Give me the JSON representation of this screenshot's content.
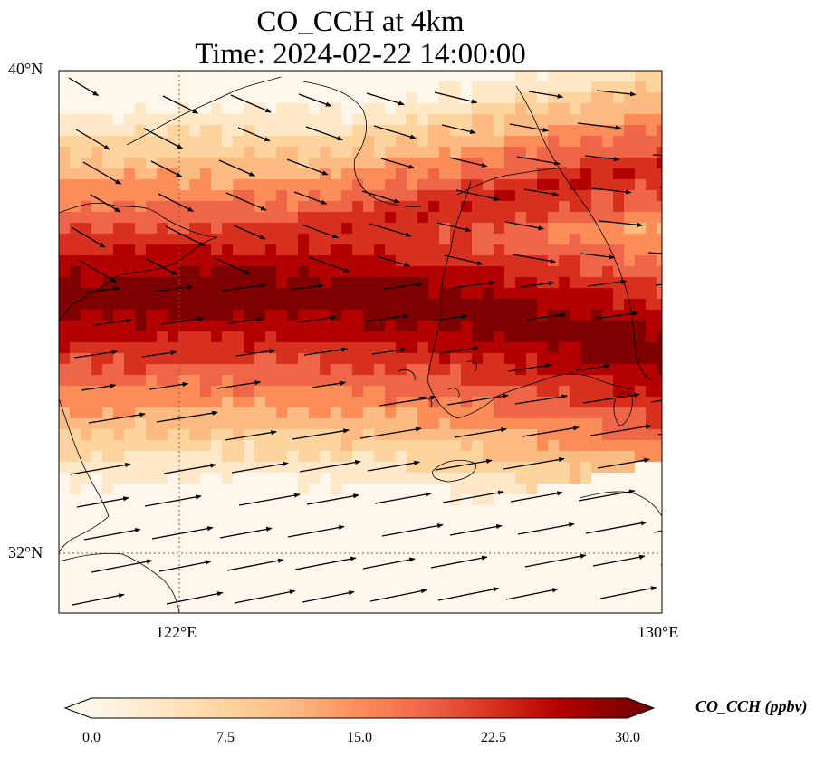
{
  "title": {
    "line1": "CO_CCH at 4km",
    "line2": "Time: 2024-02-22 14:00:00"
  },
  "axes": {
    "lon_ticks": [
      "122°E",
      "130°E"
    ],
    "lat_ticks": [
      "40°N",
      "32°N"
    ],
    "lon_range": [
      120,
      130
    ],
    "lat_range": [
      31,
      40
    ]
  },
  "colorbar": {
    "label": "CO_CCH (ppbv)",
    "ticks": [
      "0.0",
      "7.5",
      "15.0",
      "22.5",
      "30.0"
    ],
    "min": 0,
    "max": 30,
    "extend": "both",
    "colormap": "OrRd",
    "colors": [
      "#fff7ec",
      "#fee8c8",
      "#fdd49e",
      "#fdbb84",
      "#fc8d59",
      "#ef6548",
      "#d7301f",
      "#b30000",
      "#7f0000"
    ]
  },
  "map": {
    "variable": "CO_CCH",
    "level": "4km",
    "gridlines": "dotted at 122°E and 32°N",
    "overlays": [
      "coastlines",
      "wind vectors"
    ]
  }
}
